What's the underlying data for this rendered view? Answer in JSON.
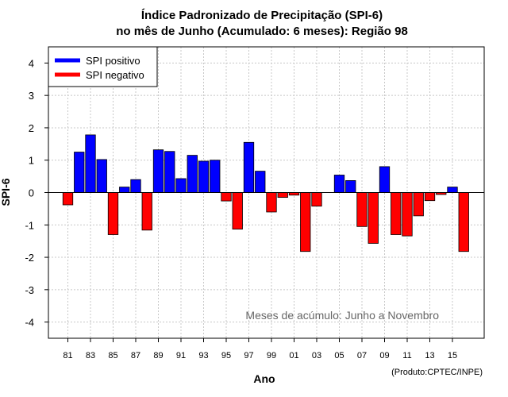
{
  "chart_data": {
    "type": "bar",
    "title": "Índice Padronizado de Precipitação (SPI-6)",
    "subtitle": "no mês de Junho (Acumulado: 6 meses): Região 98",
    "xlabel": "Ano",
    "ylabel": "SPI-6",
    "ylim": [
      -4.5,
      4.5
    ],
    "yticks": [
      "4",
      "3",
      "2",
      "1",
      "0",
      "-1",
      "-2",
      "-3",
      "-4"
    ],
    "x": [
      81,
      82,
      83,
      84,
      85,
      86,
      87,
      88,
      89,
      90,
      91,
      92,
      93,
      94,
      95,
      96,
      97,
      98,
      99,
      0,
      1,
      2,
      3,
      4,
      5,
      6,
      7,
      8,
      9,
      10,
      11,
      12,
      13,
      14,
      15,
      16
    ],
    "xtick_labels": [
      "81",
      "83",
      "85",
      "87",
      "89",
      "91",
      "93",
      "95",
      "97",
      "99",
      "01",
      "03",
      "05",
      "07",
      "09",
      "11",
      "13",
      "15"
    ],
    "values": [
      -0.38,
      1.25,
      1.78,
      1.02,
      -1.3,
      0.17,
      0.4,
      -1.16,
      1.32,
      1.27,
      0.43,
      1.15,
      0.97,
      1.0,
      -0.26,
      -1.13,
      1.55,
      0.66,
      -0.6,
      -0.15,
      -0.08,
      -1.82,
      -0.42,
      0.0,
      0.54,
      0.37,
      -1.05,
      -1.57,
      0.8,
      -1.3,
      -1.34,
      -0.72,
      -0.25,
      -0.06,
      0.17,
      -1.82
    ],
    "grid": true,
    "legend_position": "top-left",
    "legend": [
      {
        "label": "SPI positivo",
        "color": "#0000ff"
      },
      {
        "label": "SPI negativo",
        "color": "#ff0000"
      }
    ],
    "annotation": "Meses de acúmulo: Junho a Novembro",
    "credit": "(Produto:CPTEC/INPE)"
  }
}
